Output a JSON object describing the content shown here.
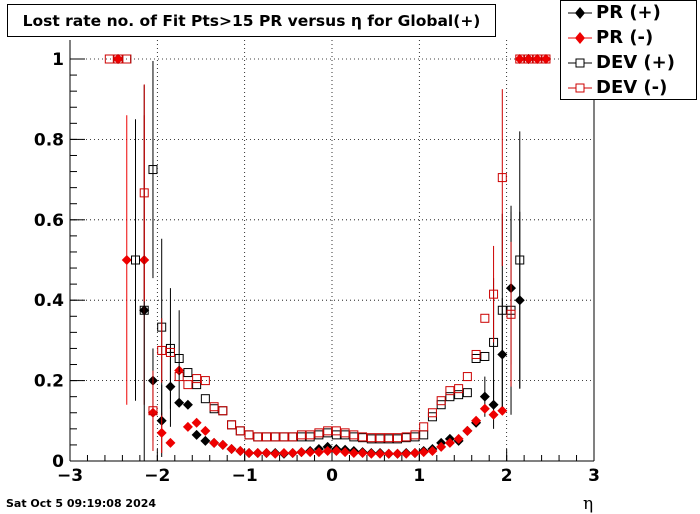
{
  "chart_data": {
    "type": "scatter",
    "title": "Lost rate no. of Fit Pts>15 PR versus η for Global(+)",
    "xlabel": "η",
    "ylabel": "",
    "xlim": [
      -3,
      3
    ],
    "ylim": [
      0,
      1
    ],
    "x_ticks": [
      "−3",
      "−2",
      "−1",
      "0",
      "1",
      "2",
      "3"
    ],
    "y_ticks": [
      "0",
      "0.2",
      "0.4",
      "0.6",
      "0.8",
      "1"
    ],
    "grid": true,
    "legend_position": "top-right",
    "series": [
      {
        "name": "PR (+)",
        "color": "#000000",
        "marker": "filled-diamond",
        "x": [
          -2.45,
          -2.15,
          -2.05,
          -1.95,
          -1.85,
          -1.75,
          -1.65,
          -1.55,
          -1.45,
          -1.35,
          -1.25,
          -1.15,
          -1.05,
          -0.95,
          -0.85,
          -0.75,
          -0.65,
          -0.55,
          -0.45,
          -0.35,
          -0.25,
          -0.15,
          -0.05,
          0.05,
          0.15,
          0.25,
          0.35,
          0.45,
          0.55,
          0.65,
          0.75,
          0.85,
          0.95,
          1.05,
          1.15,
          1.25,
          1.35,
          1.45,
          1.55,
          1.65,
          1.75,
          1.85,
          1.95,
          2.05,
          2.15,
          2.25
        ],
        "y": [
          1.0,
          0.375,
          0.2,
          0.1,
          0.185,
          0.145,
          0.14,
          0.065,
          0.05,
          0.045,
          0.04,
          0.03,
          0.025,
          0.02,
          0.02,
          0.02,
          0.02,
          0.018,
          0.02,
          0.022,
          0.025,
          0.03,
          0.035,
          0.03,
          0.028,
          0.025,
          0.022,
          0.02,
          0.02,
          0.018,
          0.018,
          0.02,
          0.02,
          0.025,
          0.03,
          0.045,
          0.055,
          0.05,
          0.075,
          0.095,
          0.16,
          0.14,
          0.265,
          0.43,
          0.4,
          1.0
        ],
        "err": [
          0,
          0,
          0.08,
          0.09,
          0.1,
          0,
          0,
          0,
          0,
          0,
          0,
          0,
          0,
          0,
          0,
          0,
          0,
          0,
          0,
          0,
          0,
          0,
          0,
          0,
          0,
          0,
          0,
          0,
          0,
          0,
          0,
          0,
          0,
          0,
          0,
          0,
          0,
          0,
          0,
          0,
          0.05,
          0.06,
          0.14,
          0.19,
          0.22,
          0
        ]
      },
      {
        "name": "PR (-)",
        "color": "#ee0000",
        "marker": "filled-diamond",
        "x": [
          -2.45,
          -2.35,
          -2.15,
          -2.05,
          -1.95,
          -1.85,
          -1.75,
          -1.65,
          -1.55,
          -1.45,
          -1.35,
          -1.25,
          -1.15,
          -1.05,
          -0.95,
          -0.85,
          -0.75,
          -0.65,
          -0.55,
          -0.45,
          -0.35,
          -0.25,
          -0.15,
          -0.05,
          0.05,
          0.15,
          0.25,
          0.35,
          0.45,
          0.55,
          0.65,
          0.75,
          0.85,
          0.95,
          1.05,
          1.15,
          1.25,
          1.35,
          1.45,
          1.55,
          1.65,
          1.75,
          1.85,
          1.95,
          2.15,
          2.25,
          2.35,
          2.45
        ],
        "y": [
          1.0,
          0.5,
          0.5,
          0.12,
          0.07,
          0.045,
          0.225,
          0.085,
          0.095,
          0.075,
          0.045,
          0.04,
          0.03,
          0.025,
          0.02,
          0.02,
          0.02,
          0.018,
          0.02,
          0.02,
          0.022,
          0.022,
          0.022,
          0.025,
          0.025,
          0.022,
          0.02,
          0.02,
          0.018,
          0.018,
          0.018,
          0.018,
          0.018,
          0.02,
          0.022,
          0.025,
          0.035,
          0.045,
          0.055,
          0.075,
          0.1,
          0.13,
          0.115,
          0.125,
          1.0,
          1.0,
          1.0,
          1.0
        ],
        "err": [
          0,
          0.36,
          0.36,
          0.07,
          0.05,
          0,
          0,
          0,
          0,
          0,
          0,
          0,
          0,
          0,
          0,
          0,
          0,
          0,
          0,
          0,
          0,
          0,
          0,
          0,
          0,
          0,
          0,
          0,
          0,
          0,
          0,
          0,
          0,
          0,
          0,
          0,
          0,
          0,
          0,
          0,
          0,
          0,
          0,
          0,
          0,
          0,
          0,
          0
        ]
      },
      {
        "name": "DEV (+)",
        "color": "#000000",
        "marker": "open-square",
        "x": [
          -2.35,
          -2.25,
          -2.15,
          -2.05,
          -1.95,
          -1.85,
          -1.75,
          -1.65,
          -1.55,
          -1.45,
          -1.35,
          -1.25,
          -1.15,
          -1.05,
          -0.95,
          -0.85,
          -0.75,
          -0.65,
          -0.55,
          -0.45,
          -0.35,
          -0.25,
          -0.15,
          -0.05,
          0.05,
          0.15,
          0.25,
          0.35,
          0.45,
          0.55,
          0.65,
          0.75,
          0.85,
          0.95,
          1.05,
          1.15,
          1.25,
          1.35,
          1.45,
          1.55,
          1.65,
          1.75,
          1.85,
          1.95,
          2.05,
          2.15,
          2.25
        ],
        "y": [
          1.0,
          0.5,
          0.375,
          0.725,
          0.333,
          0.28,
          0.255,
          0.22,
          0.19,
          0.155,
          0.13,
          0.125,
          0.09,
          0.075,
          0.065,
          0.06,
          0.06,
          0.06,
          0.06,
          0.06,
          0.06,
          0.06,
          0.065,
          0.07,
          0.065,
          0.065,
          0.06,
          0.058,
          0.055,
          0.055,
          0.055,
          0.055,
          0.058,
          0.06,
          0.065,
          0.11,
          0.14,
          0.16,
          0.165,
          0.17,
          0.255,
          0.26,
          0.295,
          0.375,
          0.375,
          0.5,
          1.0
        ],
        "err": [
          0,
          0.35,
          0.56,
          0.27,
          0.22,
          0.15,
          0.12,
          0,
          0,
          0,
          0,
          0,
          0,
          0,
          0,
          0,
          0,
          0,
          0,
          0,
          0,
          0,
          0,
          0,
          0,
          0,
          0,
          0,
          0,
          0,
          0,
          0,
          0,
          0,
          0,
          0,
          0,
          0,
          0,
          0,
          0,
          0,
          0.16,
          0.24,
          0.26,
          0.32,
          0
        ]
      },
      {
        "name": "DEV (-)",
        "color": "#cc0000",
        "marker": "open-square",
        "x": [
          -2.55,
          -2.45,
          -2.35,
          -2.15,
          -2.05,
          -1.95,
          -1.85,
          -1.75,
          -1.65,
          -1.55,
          -1.45,
          -1.35,
          -1.25,
          -1.15,
          -1.05,
          -0.95,
          -0.85,
          -0.75,
          -0.65,
          -0.55,
          -0.45,
          -0.35,
          -0.25,
          -0.15,
          -0.05,
          0.05,
          0.15,
          0.25,
          0.35,
          0.45,
          0.55,
          0.65,
          0.75,
          0.85,
          0.95,
          1.05,
          1.15,
          1.25,
          1.35,
          1.45,
          1.55,
          1.65,
          1.75,
          1.85,
          1.95,
          2.05,
          2.15,
          2.25,
          2.35,
          2.45
        ],
        "y": [
          1.0,
          1.0,
          1.0,
          0.667,
          0.125,
          0.275,
          0.27,
          0.21,
          0.19,
          0.205,
          0.2,
          0.135,
          0.125,
          0.09,
          0.075,
          0.065,
          0.06,
          0.06,
          0.06,
          0.06,
          0.06,
          0.065,
          0.065,
          0.07,
          0.075,
          0.075,
          0.07,
          0.065,
          0.06,
          0.058,
          0.058,
          0.058,
          0.058,
          0.06,
          0.065,
          0.085,
          0.12,
          0.15,
          0.175,
          0.18,
          0.21,
          0.265,
          0.355,
          0.415,
          0.705,
          0.365,
          1.0,
          1.0,
          1.0,
          1.0
        ],
        "err": [
          0,
          0,
          0,
          0.27,
          0.1,
          0.08,
          0,
          0,
          0,
          0,
          0,
          0,
          0,
          0,
          0,
          0,
          0,
          0,
          0,
          0,
          0,
          0,
          0,
          0,
          0,
          0,
          0,
          0,
          0,
          0,
          0,
          0,
          0,
          0,
          0,
          0,
          0,
          0,
          0,
          0,
          0,
          0,
          0,
          0.12,
          0.22,
          0.18,
          0,
          0,
          0,
          0
        ]
      }
    ]
  },
  "footer": {
    "datestamp": "Sat Oct  5 09:19:08 2024"
  }
}
